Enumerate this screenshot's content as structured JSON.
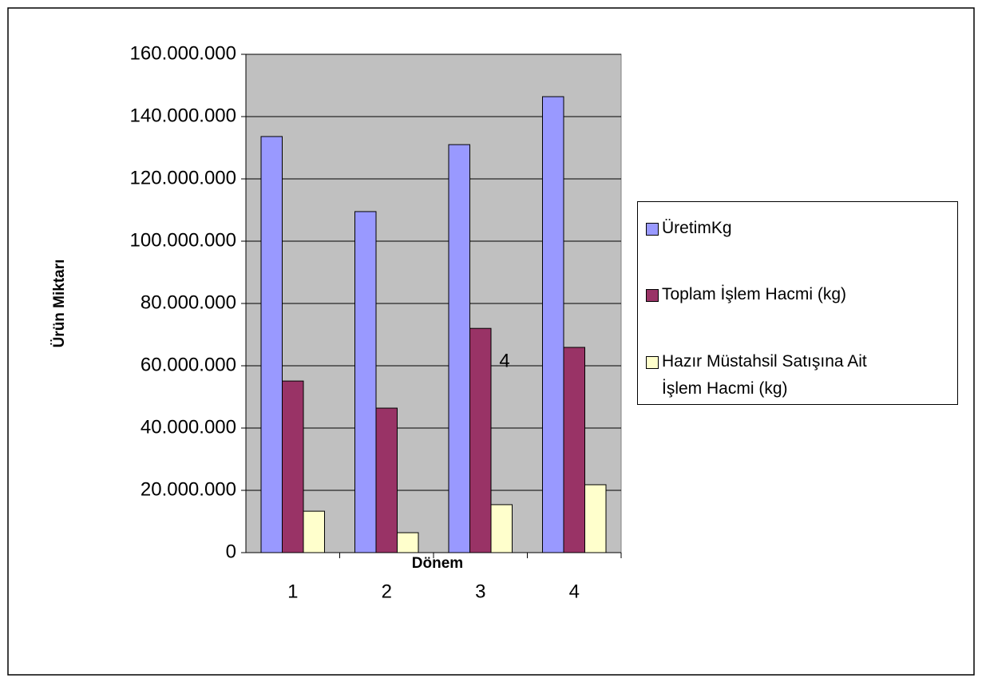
{
  "chart_data": {
    "type": "bar",
    "categories": [
      "1",
      "2",
      "3",
      "4"
    ],
    "series": [
      {
        "name": "ÜretimKg",
        "color": "#9999ff",
        "values": [
          133600000,
          109500000,
          131000000,
          146400000
        ]
      },
      {
        "name": "Toplam İşlem Hacmi (kg)",
        "color": "#993366",
        "values": [
          55100000,
          46400000,
          72000000,
          65900000
        ]
      },
      {
        "name": "Hazır Müstahsil Satışına Ait İşlem Hacmi (kg)",
        "color": "#ffffcc",
        "values": [
          13300000,
          6400000,
          15400000,
          21800000
        ]
      }
    ],
    "x_label": "Dönem",
    "y_label": "Ürün Miktarı",
    "annotation": "4",
    "ylim": [
      0,
      160000000
    ],
    "yticks": [
      0,
      {
        "value": 20000000,
        "label": "20.000.000"
      },
      {
        "value": 40000000,
        "label": "40.000.000"
      },
      {
        "value": 60000000,
        "label": "60.000.000"
      },
      {
        "value": 80000000,
        "label": "80.000.000"
      },
      {
        "value": 100000000,
        "label": "100.000.000"
      },
      {
        "value": 120000000,
        "label": "120.000.000"
      },
      {
        "value": 140000000,
        "label": "140.000.000"
      },
      {
        "value": 160000000,
        "label": "160.000.000"
      }
    ],
    "grid": true,
    "plot_background": "#c0c0c0",
    "legend": "right"
  }
}
